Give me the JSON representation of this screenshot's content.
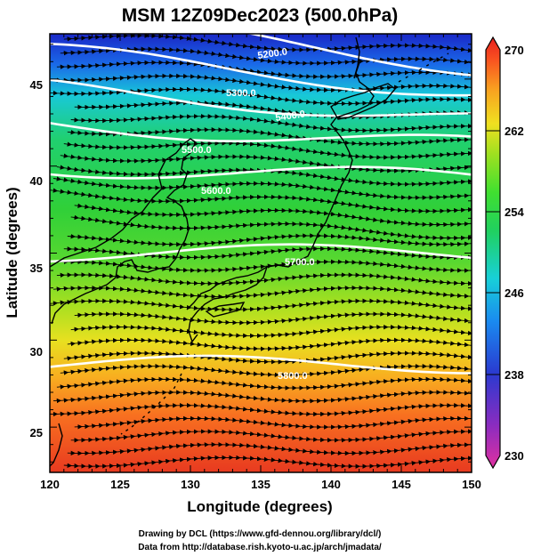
{
  "title": "MSM 12Z09Dec2023 (500.0hPa)",
  "xlabel": "Longitude (degrees)",
  "ylabel": "Latitude  (degrees)",
  "credits": [
    "Drawing by DCL (https://www.gfd-dennou.org/library/dcl/)",
    "Data from http://database.rish.kyoto-u.ac.jp/arch/jmadata/"
  ],
  "map": {
    "lon_range": [
      120,
      150
    ],
    "lat_range": [
      22.4,
      47.6
    ],
    "x_ticks": [
      "120",
      "125",
      "130",
      "135",
      "140",
      "145",
      "150"
    ],
    "y_ticks": [
      "25",
      "30",
      "35",
      "40",
      "45"
    ],
    "shading_variable": "temperature (K)",
    "colorbar": {
      "min": 230,
      "max": 270,
      "labels": [
        "270",
        "262",
        "254",
        "246",
        "238",
        "230"
      ],
      "colors": [
        "#e0309a",
        "#8a2cc0",
        "#2a3ad0",
        "#1a8af0",
        "#18d0d8",
        "#20d060",
        "#40e030",
        "#a0e020",
        "#f0e020",
        "#f8a020",
        "#f85020",
        "#e82020"
      ]
    },
    "contours": [
      {
        "label": "5200.0",
        "lat": 47.2
      },
      {
        "label": "5300.0",
        "lat": 45.4
      },
      {
        "label": "5400.0",
        "lat": 43.6
      },
      {
        "label": "5500.0",
        "lat": 41.8
      },
      {
        "label": "5600.0",
        "lat": 39.6
      },
      {
        "label": "5700.0",
        "lat": 35.0
      },
      {
        "label": "5800.0",
        "lat": 28.6
      }
    ],
    "wind": "streamlines, westerly flow",
    "colors": {
      "coast": "#000000",
      "contour": "#ffffff"
    }
  }
}
